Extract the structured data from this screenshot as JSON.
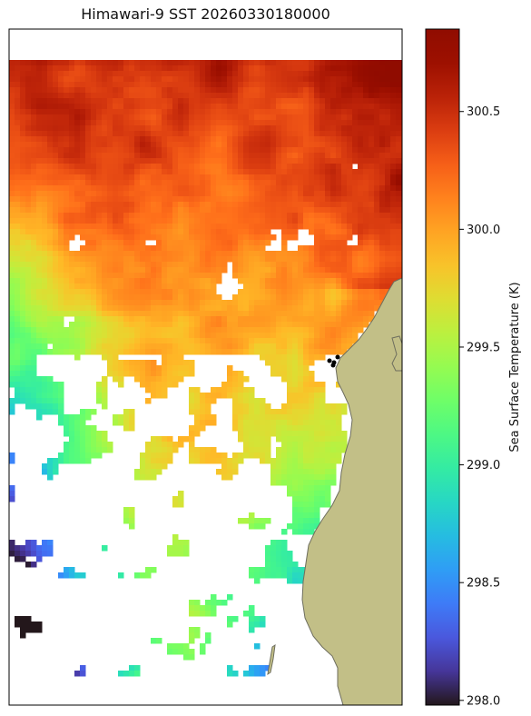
{
  "title": "Himawari-9 SST 20260330180000",
  "colors": {
    "land": "#c2bf87",
    "coast": "#6e6e5e",
    "cloud_mask": "#ffffff",
    "marker": "#000000"
  },
  "colormap": "turbo",
  "chart_data": {
    "type": "heatmap",
    "title": "Himawari-9 SST 20260330180000",
    "colorbar": {
      "label": "Sea Surface Temperature (K)",
      "range": [
        297.98,
        300.85
      ],
      "ticks": [
        298.0,
        298.5,
        299.0,
        299.5,
        300.0,
        300.5
      ],
      "tick_labels": [
        "298.0",
        "298.5",
        "299.0",
        "299.5",
        "300.0",
        "300.5"
      ]
    },
    "grid": false,
    "legend": "none",
    "description_fields": {
      "warm_region": "north / northeast, ~300.3–300.8 K",
      "mid_region": "center / east near coast, ~299.5–300.0 K",
      "cool_region": "southeast coastal band, ~298.1–298.7 K",
      "west_region": "west offshore, ~299.0–299.4 K"
    }
  }
}
